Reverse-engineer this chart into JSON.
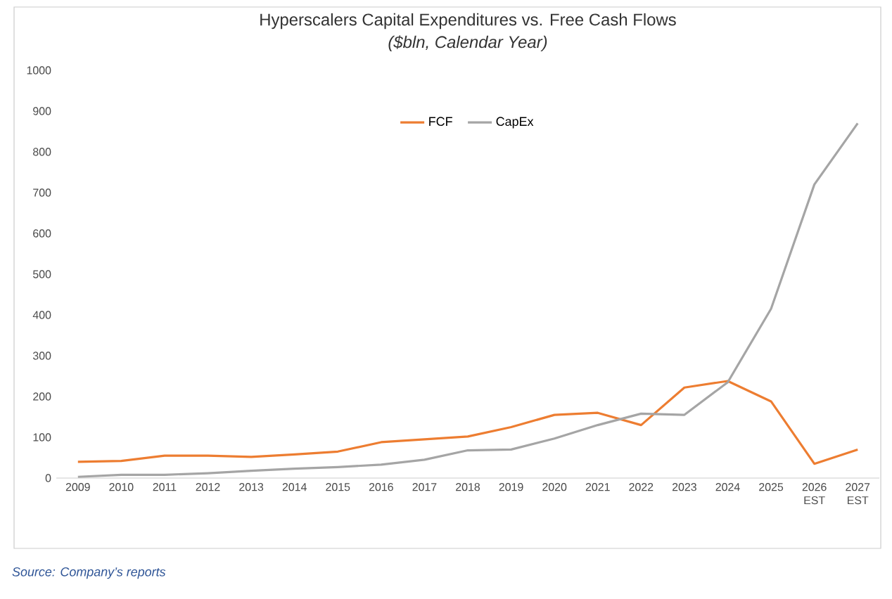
{
  "chart_data": {
    "type": "line",
    "title": "Hyperscalers Capital Expenditures vs. Free Cash Flows",
    "subtitle": "($bln, Calendar Year)",
    "categories": [
      "2009",
      "2010",
      "2011",
      "2012",
      "2013",
      "2014",
      "2015",
      "2016",
      "2017",
      "2018",
      "2019",
      "2020",
      "2021",
      "2022",
      "2023",
      "2024",
      "2025",
      "2026 EST",
      "2027 EST"
    ],
    "series": [
      {
        "name": "FCF",
        "color": "#ed7d31",
        "values": [
          40,
          42,
          55,
          55,
          52,
          58,
          65,
          88,
          95,
          102,
          125,
          155,
          160,
          130,
          222,
          238,
          188,
          35,
          70
        ]
      },
      {
        "name": "CapEx",
        "color": "#a5a5a5",
        "values": [
          3,
          8,
          8,
          12,
          18,
          23,
          27,
          33,
          45,
          68,
          70,
          97,
          130,
          158,
          155,
          235,
          415,
          720,
          870
        ]
      }
    ],
    "ylim": [
      0,
      1000
    ],
    "yticks": [
      0,
      100,
      200,
      300,
      400,
      500,
      600,
      700,
      800,
      900,
      1000
    ],
    "grid": false,
    "legend": "top",
    "marker": "none",
    "line_style": "solid",
    "annotations": [
      "Source: Company’s reports"
    ]
  }
}
